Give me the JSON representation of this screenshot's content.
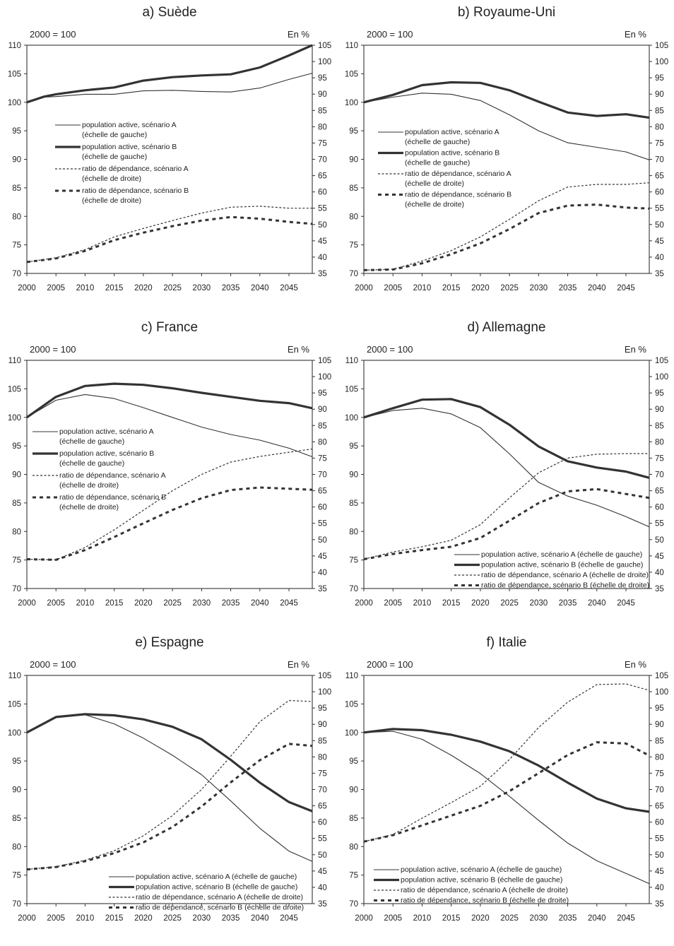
{
  "common": {
    "left_unit": "2000 = 100",
    "right_unit": "En %",
    "x_ticks": [
      "2000",
      "2005",
      "2010",
      "2015",
      "2020",
      "2025",
      "2030",
      "2035",
      "2040",
      "2045"
    ],
    "left_ticks": [
      "70",
      "75",
      "80",
      "85",
      "90",
      "95",
      "100",
      "105",
      "110"
    ],
    "right_ticks": [
      "35",
      "40",
      "45",
      "50",
      "55",
      "60",
      "65",
      "70",
      "75",
      "80",
      "85",
      "90",
      "95",
      "100",
      "105"
    ]
  },
  "chart_data": [
    {
      "type": "line",
      "title": "a) Suède",
      "xlim": [
        2000,
        2049
      ],
      "ylim_left": [
        70,
        110
      ],
      "ylim_right": [
        35,
        105
      ],
      "legend_style": "two-line",
      "series": [
        {
          "name": "population active, scénario A",
          "scale": "(échelle de gauche)",
          "axis": "left",
          "style": "thin",
          "x": [
            2000,
            2003,
            2005,
            2010,
            2015,
            2020,
            2025,
            2030,
            2035,
            2040,
            2045,
            2049
          ],
          "y": [
            100,
            100.9,
            101,
            101.4,
            101.4,
            102,
            102.1,
            101.9,
            101.8,
            102.5,
            104,
            105.1
          ]
        },
        {
          "name": "population active, scénario B",
          "scale": "(échelle de gauche)",
          "axis": "left",
          "style": "thick",
          "x": [
            2000,
            2003,
            2005,
            2010,
            2015,
            2020,
            2025,
            2030,
            2035,
            2040,
            2045,
            2049
          ],
          "y": [
            100,
            101,
            101.4,
            102.1,
            102.6,
            103.8,
            104.4,
            104.7,
            104.9,
            106.1,
            108.2,
            110
          ]
        },
        {
          "name": "ratio de dépendance, scénario A",
          "scale": "(échelle de droite)",
          "axis": "right",
          "style": "thin-dashed",
          "x": [
            2000,
            2005,
            2010,
            2015,
            2020,
            2025,
            2030,
            2035,
            2040,
            2045,
            2049
          ],
          "y": [
            38.5,
            39.8,
            42.3,
            46.2,
            48.8,
            51.2,
            53.5,
            55.3,
            55.6,
            55,
            55
          ]
        },
        {
          "name": "ratio de dépendance, scénario B",
          "scale": "(échelle de droite)",
          "axis": "right",
          "style": "thick-dashed",
          "x": [
            2000,
            2005,
            2010,
            2015,
            2020,
            2025,
            2030,
            2035,
            2040,
            2045,
            2049
          ],
          "y": [
            38.5,
            39.6,
            41.9,
            45.2,
            47.5,
            49.5,
            51.2,
            52.3,
            51.8,
            50.8,
            50.2
          ]
        }
      ]
    },
    {
      "type": "line",
      "title": "b) Royaume-Uni",
      "xlim": [
        2000,
        2049
      ],
      "ylim_left": [
        70,
        110
      ],
      "ylim_right": [
        35,
        105
      ],
      "legend_style": "two-line",
      "series": [
        {
          "name": "population active, scénario A",
          "scale": "(échelle de gauche)",
          "axis": "left",
          "style": "thin",
          "x": [
            2000,
            2005,
            2010,
            2015,
            2020,
            2025,
            2030,
            2035,
            2040,
            2045,
            2049
          ],
          "y": [
            100,
            100.9,
            101.6,
            101.4,
            100.3,
            97.8,
            95,
            92.9,
            92.1,
            91.3,
            89.9
          ]
        },
        {
          "name": "population active, scénario B",
          "scale": "(échelle de gauche)",
          "axis": "left",
          "style": "thick",
          "x": [
            2000,
            2005,
            2010,
            2015,
            2020,
            2025,
            2030,
            2035,
            2040,
            2045,
            2049
          ],
          "y": [
            100,
            101.3,
            103,
            103.5,
            103.4,
            102.1,
            100.1,
            98.2,
            97.6,
            97.9,
            97.3
          ]
        },
        {
          "name": "ratio de dépendance, scénario A",
          "scale": "(échelle de droite)",
          "axis": "right",
          "style": "thin-dashed",
          "x": [
            2000,
            2005,
            2010,
            2015,
            2020,
            2025,
            2030,
            2035,
            2040,
            2045,
            2049
          ],
          "y": [
            36,
            36.3,
            38.8,
            42,
            46.2,
            51.6,
            57.3,
            61.5,
            62.3,
            62.3,
            62.8
          ]
        },
        {
          "name": "ratio de dépendance, scénario B",
          "scale": "(échelle de droite)",
          "axis": "right",
          "style": "thick-dashed",
          "x": [
            2000,
            2005,
            2010,
            2015,
            2020,
            2025,
            2030,
            2035,
            2040,
            2045,
            2049
          ],
          "y": [
            36,
            36.2,
            38.1,
            40.9,
            44.2,
            48.6,
            53.5,
            55.8,
            56.1,
            55.2,
            54.9
          ]
        }
      ]
    },
    {
      "type": "line",
      "title": "c) France",
      "xlim": [
        2000,
        2049
      ],
      "ylim_left": [
        70,
        110
      ],
      "ylim_right": [
        35,
        105
      ],
      "legend_style": "two-line",
      "series": [
        {
          "name": "population active, scénario A",
          "scale": "(échelle de gauche)",
          "axis": "left",
          "style": "thin",
          "x": [
            2000,
            2005,
            2010,
            2015,
            2020,
            2025,
            2030,
            2035,
            2040,
            2045,
            2049
          ],
          "y": [
            100,
            103,
            104,
            103.3,
            101.7,
            100,
            98.3,
            97,
            96,
            94.6,
            93.1
          ]
        },
        {
          "name": "population active, scénario B",
          "scale": "(échelle de gauche)",
          "axis": "left",
          "style": "thick",
          "x": [
            2000,
            2005,
            2010,
            2015,
            2020,
            2025,
            2030,
            2035,
            2040,
            2045,
            2049
          ],
          "y": [
            100,
            103.6,
            105.5,
            105.9,
            105.7,
            105.1,
            104.3,
            103.6,
            102.9,
            102.5,
            101.6
          ]
        },
        {
          "name": "ratio de dépendance, scénario A",
          "scale": "(échelle de droite)",
          "axis": "right",
          "style": "thin-dashed",
          "x": [
            2000,
            2005,
            2010,
            2015,
            2020,
            2025,
            2030,
            2035,
            2040,
            2045,
            2049
          ],
          "y": [
            44,
            43.8,
            47.6,
            53,
            59,
            65,
            70,
            73.8,
            75.5,
            76.8,
            77.8
          ]
        },
        {
          "name": "ratio de dépendance, scénario B",
          "scale": "(échelle de droite)",
          "axis": "right",
          "style": "thick-dashed",
          "x": [
            2000,
            2005,
            2010,
            2015,
            2020,
            2025,
            2030,
            2035,
            2040,
            2045,
            2049
          ],
          "y": [
            44,
            43.8,
            46.8,
            50.8,
            55,
            59.1,
            62.7,
            65.2,
            66,
            65.6,
            65.3
          ]
        }
      ]
    },
    {
      "type": "line",
      "title": "d) Allemagne",
      "xlim": [
        2000,
        2049
      ],
      "ylim_left": [
        70,
        110
      ],
      "ylim_right": [
        35,
        105
      ],
      "legend_style": "one-line",
      "series": [
        {
          "name": "population active, scénario A (échelle de gauche)",
          "axis": "left",
          "style": "thin",
          "x": [
            2000,
            2005,
            2010,
            2015,
            2020,
            2025,
            2030,
            2035,
            2040,
            2045,
            2049
          ],
          "y": [
            100,
            101.2,
            101.6,
            100.6,
            98.2,
            93.6,
            88.6,
            86.2,
            84.6,
            82.6,
            80.8
          ]
        },
        {
          "name": "population active, scénario B (échelle de gauche)",
          "axis": "left",
          "style": "thick",
          "x": [
            2000,
            2005,
            2010,
            2015,
            2020,
            2025,
            2030,
            2035,
            2040,
            2045,
            2049
          ],
          "y": [
            100,
            101.6,
            103.1,
            103.2,
            101.8,
            98.7,
            94.9,
            92.3,
            91.2,
            90.5,
            89.4
          ]
        },
        {
          "name": "ratio de dépendance, scénario A (échelle de droite)",
          "axis": "right",
          "style": "thin-dashed",
          "x": [
            2000,
            2005,
            2010,
            2015,
            2020,
            2025,
            2030,
            2035,
            2040,
            2045,
            2049
          ],
          "y": [
            44,
            46.2,
            47.8,
            49.8,
            54.6,
            62.8,
            70.5,
            75,
            76.2,
            76.4,
            76.4
          ]
        },
        {
          "name": "ratio de dépendance, scénario B (échelle de droite)",
          "axis": "right",
          "style": "thick-dashed",
          "x": [
            2000,
            2005,
            2010,
            2015,
            2020,
            2025,
            2030,
            2035,
            2040,
            2045,
            2049
          ],
          "y": [
            44,
            45.6,
            46.8,
            47.8,
            50.5,
            55.8,
            61.2,
            64.8,
            65.5,
            64,
            62.8
          ]
        }
      ]
    },
    {
      "type": "line",
      "title": "e) Espagne",
      "xlim": [
        2000,
        2049
      ],
      "ylim_left": [
        70,
        110
      ],
      "ylim_right": [
        35,
        105
      ],
      "legend_style": "one-line",
      "series": [
        {
          "name": "population active, scénario A (échelle de gauche)",
          "axis": "left",
          "style": "thin",
          "x": [
            2000,
            2005,
            2010,
            2015,
            2020,
            2025,
            2030,
            2035,
            2040,
            2045,
            2049
          ],
          "y": [
            100,
            102.7,
            103.1,
            101.5,
            99,
            96,
            92.6,
            88,
            83.2,
            79.2,
            77.4
          ]
        },
        {
          "name": "population active, scénario B (échelle de gauche)",
          "axis": "left",
          "style": "thick",
          "x": [
            2000,
            2005,
            2010,
            2015,
            2020,
            2025,
            2030,
            2035,
            2040,
            2045,
            2049
          ],
          "y": [
            100,
            102.7,
            103.2,
            103,
            102.3,
            101,
            98.8,
            95.2,
            91.2,
            87.8,
            86.2
          ]
        },
        {
          "name": "ratio de dépendance, scénario A (échelle de droite)",
          "axis": "right",
          "style": "thin-dashed",
          "x": [
            2000,
            2005,
            2010,
            2015,
            2020,
            2025,
            2030,
            2035,
            2040,
            2045,
            2049
          ],
          "y": [
            45.5,
            46.3,
            48.3,
            51.2,
            55.8,
            62,
            70,
            80.2,
            90.8,
            97.3,
            97
          ]
        },
        {
          "name": "ratio de dépendance, scénario B (échelle de droite)",
          "axis": "right",
          "style": "thick-dashed",
          "x": [
            2000,
            2005,
            2010,
            2015,
            2020,
            2025,
            2030,
            2035,
            2040,
            2045,
            2049
          ],
          "y": [
            45.5,
            46.2,
            48,
            50.5,
            53.8,
            58.5,
            64.8,
            72.2,
            79,
            84,
            83.4
          ]
        }
      ]
    },
    {
      "type": "line",
      "title": "f) Italie",
      "xlim": [
        2000,
        2049
      ],
      "ylim_left": [
        70,
        110
      ],
      "ylim_right": [
        35,
        105
      ],
      "legend_style": "one-line",
      "series": [
        {
          "name": "population active, scénario A (échelle de gauche)",
          "axis": "left",
          "style": "thin",
          "x": [
            2000,
            2005,
            2010,
            2015,
            2020,
            2025,
            2030,
            2035,
            2040,
            2045,
            2049
          ],
          "y": [
            100,
            100.2,
            98.8,
            96,
            92.8,
            88.8,
            84.6,
            80.6,
            77.5,
            75.3,
            73.5
          ]
        },
        {
          "name": "population active, scénario B (échelle de gauche)",
          "axis": "left",
          "style": "thick",
          "x": [
            2000,
            2005,
            2010,
            2015,
            2020,
            2025,
            2030,
            2035,
            2040,
            2045,
            2049
          ],
          "y": [
            100,
            100.6,
            100.4,
            99.6,
            98.4,
            96.7,
            94.2,
            91.2,
            88.4,
            86.7,
            86.1
          ]
        },
        {
          "name": "ratio de dépendance, scénario A (échelle de droite)",
          "axis": "right",
          "style": "thin-dashed",
          "x": [
            2000,
            2005,
            2010,
            2015,
            2020,
            2025,
            2030,
            2035,
            2040,
            2045,
            2049
          ],
          "y": [
            54,
            56.2,
            61.2,
            66,
            71,
            79.2,
            89,
            96.8,
            102.2,
            102.4,
            100.4
          ]
        },
        {
          "name": "ratio de dépendance, scénario B (échelle de droite)",
          "axis": "right",
          "style": "thick-dashed",
          "x": [
            2000,
            2005,
            2010,
            2015,
            2020,
            2025,
            2030,
            2035,
            2040,
            2045,
            2049
          ],
          "y": [
            54,
            56,
            59,
            62,
            65,
            69.5,
            75,
            80.6,
            84.5,
            84.1,
            80.4
          ]
        }
      ]
    }
  ]
}
